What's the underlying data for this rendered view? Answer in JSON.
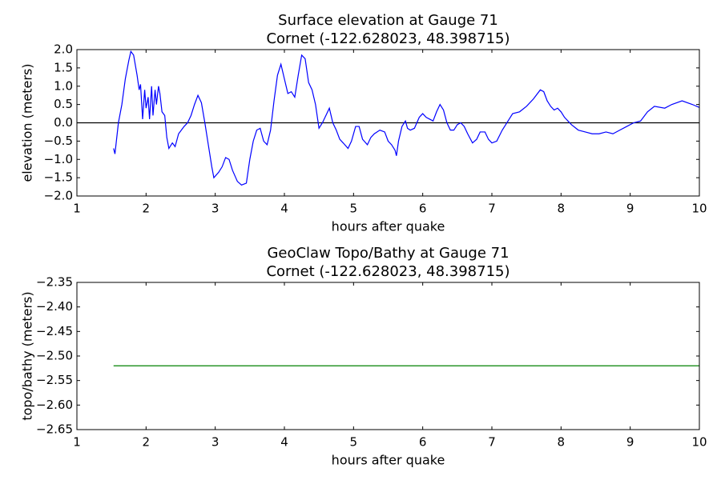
{
  "chart_data": [
    {
      "type": "line",
      "title": "Surface elevation at Gauge 71",
      "subtitle": "Cornet  (-122.628023, 48.398715)",
      "xlabel": "hours after quake",
      "ylabel": "elevation (meters)",
      "xlim": [
        1,
        10
      ],
      "xticks": [
        1,
        2,
        3,
        4,
        5,
        6,
        7,
        8,
        9,
        10
      ],
      "ylim": [
        -2.0,
        2.0
      ],
      "yticks": [
        {
          "value": -2.0,
          "label": "−2.0"
        },
        {
          "value": -1.5,
          "label": "−1.5"
        },
        {
          "value": -1.0,
          "label": "−1.0"
        },
        {
          "value": -0.5,
          "label": "−0.5"
        },
        {
          "value": 0.0,
          "label": "0.0"
        },
        0.5,
        {
          "value": 1.0,
          "label": "1.0"
        },
        1.5,
        {
          "value": 2.0,
          "label": "2.0"
        }
      ],
      "hline": 0,
      "hline_color": "#000000",
      "series": [
        {
          "color": "#0000ff",
          "x": [
            1.53,
            1.55,
            1.6,
            1.65,
            1.7,
            1.75,
            1.78,
            1.82,
            1.87,
            1.9,
            1.92,
            1.95,
            1.98,
            2.0,
            2.03,
            2.05,
            2.08,
            2.1,
            2.13,
            2.15,
            2.18,
            2.2,
            2.23,
            2.27,
            2.3,
            2.33,
            2.38,
            2.42,
            2.47,
            2.55,
            2.6,
            2.65,
            2.7,
            2.75,
            2.8,
            2.85,
            2.9,
            2.95,
            2.98,
            3.05,
            3.1,
            3.15,
            3.2,
            3.25,
            3.32,
            3.38,
            3.45,
            3.5,
            3.55,
            3.6,
            3.65,
            3.7,
            3.75,
            3.8,
            3.85,
            3.9,
            3.95,
            4.0,
            4.05,
            4.1,
            4.15,
            4.2,
            4.25,
            4.3,
            4.35,
            4.4,
            4.45,
            4.5,
            4.55,
            4.6,
            4.65,
            4.7,
            4.75,
            4.8,
            4.85,
            4.92,
            4.97,
            5.03,
            5.08,
            5.13,
            5.2,
            5.25,
            5.3,
            5.38,
            5.45,
            5.5,
            5.55,
            5.6,
            5.62,
            5.65,
            5.7,
            5.75,
            5.78,
            5.82,
            5.88,
            5.95,
            6.0,
            6.05,
            6.1,
            6.15,
            6.2,
            6.25,
            6.3,
            6.35,
            6.4,
            6.45,
            6.5,
            6.55,
            6.6,
            6.65,
            6.72,
            6.78,
            6.83,
            6.9,
            6.95,
            7.0,
            7.07,
            7.15,
            7.2,
            7.25,
            7.3,
            7.4,
            7.5,
            7.6,
            7.7,
            7.75,
            7.8,
            7.85,
            7.9,
            7.95,
            8.0,
            8.05,
            8.15,
            8.25,
            8.35,
            8.45,
            8.55,
            8.65,
            8.75,
            8.85,
            8.95,
            9.05,
            9.15,
            9.25,
            9.35,
            9.5,
            9.6,
            9.75,
            9.9,
            10.0
          ],
          "values": [
            -0.7,
            -0.85,
            0.0,
            0.5,
            1.2,
            1.7,
            1.95,
            1.85,
            1.3,
            0.9,
            1.05,
            0.1,
            0.9,
            0.4,
            0.7,
            0.1,
            1.0,
            0.2,
            0.9,
            0.5,
            1.0,
            0.8,
            0.3,
            0.2,
            -0.4,
            -0.7,
            -0.55,
            -0.65,
            -0.3,
            -0.1,
            0.0,
            0.2,
            0.5,
            0.75,
            0.55,
            0.0,
            -0.6,
            -1.2,
            -1.5,
            -1.35,
            -1.2,
            -0.95,
            -1.0,
            -1.3,
            -1.6,
            -1.7,
            -1.65,
            -1.0,
            -0.5,
            -0.2,
            -0.15,
            -0.5,
            -0.6,
            -0.2,
            0.6,
            1.3,
            1.6,
            1.2,
            0.8,
            0.85,
            0.7,
            1.3,
            1.85,
            1.75,
            1.1,
            0.9,
            0.5,
            -0.15,
            0.0,
            0.2,
            0.4,
            0.0,
            -0.2,
            -0.45,
            -0.55,
            -0.7,
            -0.5,
            -0.1,
            -0.1,
            -0.45,
            -0.6,
            -0.4,
            -0.3,
            -0.2,
            -0.25,
            -0.5,
            -0.6,
            -0.75,
            -0.9,
            -0.5,
            -0.1,
            0.05,
            -0.15,
            -0.2,
            -0.15,
            0.15,
            0.25,
            0.15,
            0.1,
            0.05,
            0.3,
            0.5,
            0.35,
            0.0,
            -0.2,
            -0.2,
            -0.05,
            0.0,
            -0.1,
            -0.3,
            -0.55,
            -0.45,
            -0.25,
            -0.25,
            -0.45,
            -0.55,
            -0.5,
            -0.2,
            -0.05,
            0.1,
            0.25,
            0.3,
            0.45,
            0.65,
            0.9,
            0.85,
            0.6,
            0.45,
            0.35,
            0.4,
            0.3,
            0.15,
            -0.05,
            -0.2,
            -0.25,
            -0.3,
            -0.3,
            -0.25,
            -0.3,
            -0.2,
            -0.1,
            0.0,
            0.05,
            0.3,
            0.45,
            0.4,
            0.5,
            0.6,
            0.5,
            0.42
          ]
        }
      ]
    },
    {
      "type": "line",
      "title": "GeoClaw Topo/Bathy at Gauge 71",
      "subtitle": "Cornet  (-122.628023, 48.398715)",
      "xlabel": "hours after quake",
      "ylabel": "topo/bathy (meters)",
      "xlim": [
        1,
        10
      ],
      "xticks": [
        1,
        2,
        3,
        4,
        5,
        6,
        7,
        8,
        9,
        10
      ],
      "ylim": [
        -2.65,
        -2.35
      ],
      "yticks": [
        {
          "value": -2.65,
          "label": "−2.65"
        },
        {
          "value": -2.6,
          "label": "−2.60"
        },
        {
          "value": -2.55,
          "label": "−2.55"
        },
        {
          "value": -2.5,
          "label": "−2.50"
        },
        {
          "value": -2.45,
          "label": "−2.45"
        },
        {
          "value": -2.4,
          "label": "−2.40"
        },
        {
          "value": -2.35,
          "label": "−2.35"
        }
      ],
      "series": [
        {
          "color": "#008000",
          "x": [
            1.53,
            10.0
          ],
          "values": [
            -2.52,
            -2.52
          ]
        }
      ]
    }
  ]
}
